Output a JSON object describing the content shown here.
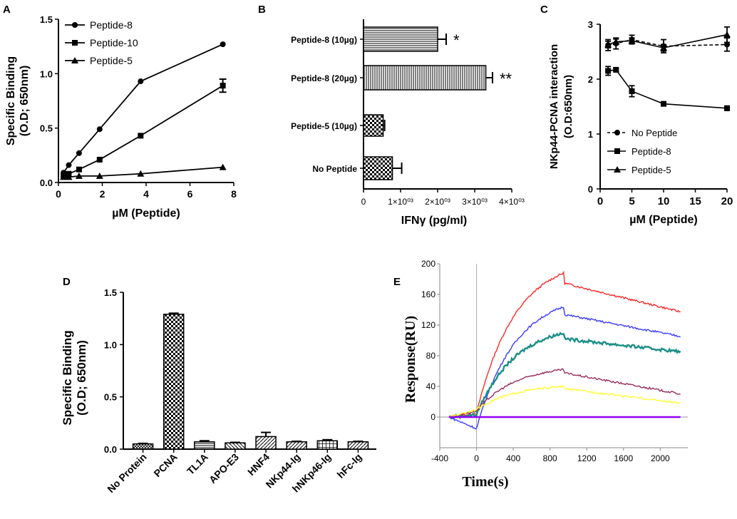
{
  "chart_data": [
    {
      "panel": "A",
      "type": "line",
      "xlabel": "µM (Peptide)",
      "ylabel": [
        "Specific Binding",
        "(O.D; 650nm)"
      ],
      "xlim": [
        0,
        8
      ],
      "ylim": [
        0,
        1.5
      ],
      "x_ticks": [
        "0",
        "2",
        "4",
        "6",
        "8"
      ],
      "y_ticks": [
        "0.0",
        "0.5",
        "1.0",
        "1.5"
      ],
      "legend": "top-left",
      "series": [
        {
          "name": "Peptide-8",
          "marker": "circle",
          "x": [
            0.23,
            0.47,
            0.94,
            1.88,
            3.75,
            7.5
          ],
          "y": [
            0.09,
            0.16,
            0.27,
            0.49,
            0.93,
            1.27
          ]
        },
        {
          "name": "Peptide-10",
          "marker": "square",
          "x": [
            0.23,
            0.47,
            0.94,
            1.88,
            3.75,
            7.5
          ],
          "y": [
            0.06,
            0.08,
            0.12,
            0.21,
            0.43,
            0.89
          ],
          "err": [
            0,
            0,
            0,
            0,
            0,
            0.06
          ]
        },
        {
          "name": "Peptide-5",
          "marker": "triangle",
          "x": [
            0.23,
            0.47,
            0.94,
            1.88,
            3.75,
            7.5
          ],
          "y": [
            0.05,
            0.05,
            0.06,
            0.06,
            0.08,
            0.14
          ]
        }
      ]
    },
    {
      "panel": "B",
      "type": "bar",
      "orientation": "horizontal",
      "xlabel": "IFNγ (pg/ml)",
      "xlim": [
        0,
        4000
      ],
      "x_ticks": [
        "0",
        "1×10⁰³",
        "2×10⁰³",
        "3×10⁰³",
        "4×10⁰³"
      ],
      "categories": [
        "Peptide-8 (10µg)",
        "Peptide-8  (20µg)",
        "Peptide-5 (10µg)",
        "No Peptide"
      ],
      "values": [
        2000,
        3300,
        530,
        780
      ],
      "errors": [
        230,
        180,
        40,
        250
      ],
      "annotations": [
        "*",
        "**",
        "",
        ""
      ]
    },
    {
      "panel": "C",
      "type": "line",
      "xlabel": "µM (Peptide)",
      "ylabel": [
        "NKp44-PCNA interaction",
        "(O.D:650nm)"
      ],
      "xlim": [
        0,
        20
      ],
      "ylim": [
        0,
        3
      ],
      "x_ticks": [
        "0",
        "5",
        "10",
        "15",
        "20"
      ],
      "y_ticks": [
        "0",
        "1",
        "2",
        "3"
      ],
      "legend": "bottom-left",
      "series": [
        {
          "name": "No Peptide",
          "marker": "circle",
          "dashed": true,
          "x": [
            1.25,
            2.5,
            5,
            10,
            20
          ],
          "y": [
            2.62,
            2.65,
            2.72,
            2.6,
            2.63
          ],
          "err": [
            0.1,
            0.1,
            0.08,
            0.12,
            0.12
          ]
        },
        {
          "name": "Peptide-8",
          "marker": "square",
          "x": [
            1.25,
            2.5,
            5,
            10,
            20
          ],
          "y": [
            2.15,
            2.17,
            1.78,
            1.55,
            1.47
          ],
          "err": [
            0.08,
            0.03,
            0.1,
            0.03,
            0.04
          ]
        },
        {
          "name": "Peptide-5",
          "marker": "triangle",
          "x": [
            1.25,
            2.5,
            5,
            10,
            20
          ],
          "y": [
            2.63,
            2.68,
            2.7,
            2.57,
            2.81
          ],
          "err": [
            0.06,
            0.05,
            0.05,
            0.06,
            0.14
          ]
        }
      ]
    },
    {
      "panel": "D",
      "type": "bar",
      "ylabel": [
        "Specific Binding",
        "(O.D; 650nm)"
      ],
      "ylim": [
        0,
        1.5
      ],
      "y_ticks": [
        "0.0",
        "0.5",
        "1.0",
        "1.5"
      ],
      "categories": [
        "No Protein",
        "PCNA",
        "TL1A",
        "APO-E3",
        "HNF4",
        "NKp44-Ig",
        "hNKp46-Ig",
        "hFc-Ig"
      ],
      "values": [
        0.05,
        1.29,
        0.07,
        0.06,
        0.12,
        0.07,
        0.08,
        0.07
      ],
      "errors": [
        0.005,
        0.01,
        0.01,
        0.005,
        0.04,
        0.005,
        0.01,
        0.005
      ]
    },
    {
      "panel": "E",
      "type": "line",
      "xlabel": "Time(s)",
      "ylabel": "Response(RU)",
      "xlim": [
        -400,
        2300
      ],
      "ylim": [
        -40,
        200
      ],
      "x_ticks": [
        "-400",
        "0",
        "400",
        "800",
        "1200",
        "1600",
        "2000"
      ],
      "y_ticks": [
        "0",
        "40",
        "80",
        "120",
        "160",
        "200"
      ],
      "series": [
        {
          "name": "red",
          "color": "#ff2a2a",
          "plateau": 188,
          "end": 137,
          "dip": 5
        },
        {
          "name": "blue",
          "color": "#3b3bff",
          "plateau": 144,
          "end": 105,
          "dip": -15
        },
        {
          "name": "teal",
          "color": "#1a8f87",
          "plateau": 110,
          "end": 85,
          "dip": 3
        },
        {
          "name": "maroon",
          "color": "#9a2d5c",
          "plateau": 62,
          "end": 30,
          "dip": 8
        },
        {
          "name": "yellow",
          "color": "#ffff33",
          "plateau": 40,
          "end": 18,
          "dip": 10
        },
        {
          "name": "baseline",
          "color": "#9400ff",
          "plateau": 0,
          "end": 0,
          "dip": 0
        }
      ]
    }
  ],
  "panel_labels": [
    "A",
    "B",
    "C",
    "D",
    "E"
  ]
}
